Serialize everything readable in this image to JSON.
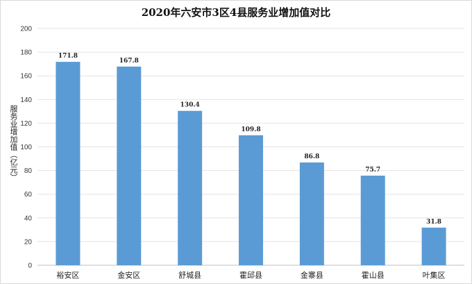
{
  "chart_data": {
    "type": "bar",
    "title": "2020年六安市3区4县服务业增加值对比",
    "xlabel": "",
    "ylabel": "服务业增加值（亿元）",
    "categories": [
      "裕安区",
      "金安区",
      "舒城县",
      "霍邱县",
      "金寨县",
      "霍山县",
      "叶集区"
    ],
    "values": [
      171.8,
      167.8,
      130.4,
      109.8,
      86.8,
      75.7,
      31.8
    ],
    "data_labels": [
      "171.8",
      "167.8",
      "130.4",
      "109.8",
      "86.8",
      "75.7",
      "31.8"
    ],
    "ylim": [
      0,
      200
    ],
    "yticks": [
      "0",
      "20",
      "40",
      "60",
      "80",
      "100",
      "120",
      "140",
      "160",
      "180",
      "200"
    ],
    "grid": true,
    "bar_color": "#5b9bd5"
  }
}
